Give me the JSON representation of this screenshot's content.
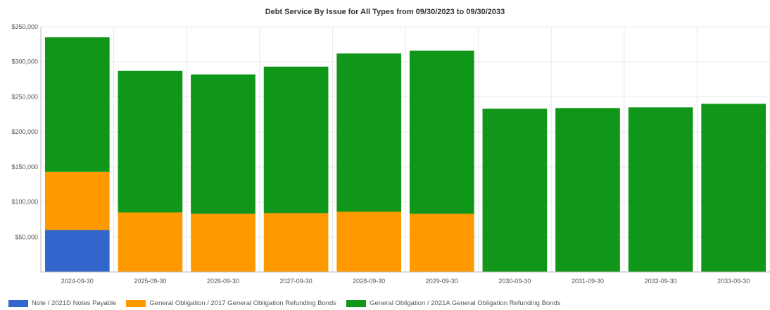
{
  "chart_data": {
    "type": "bar",
    "stacked": true,
    "title": "Debt Service By Issue for All Types from 09/30/2023 to 09/30/2033",
    "xlabel": "",
    "ylabel": "",
    "ylim": [
      0,
      350000
    ],
    "yticks": [
      "$50,000",
      "$100,000",
      "$150,000",
      "$200,000",
      "$250,000",
      "$300,000",
      "$350,000"
    ],
    "ytick_values": [
      50000,
      100000,
      150000,
      200000,
      250000,
      300000,
      350000
    ],
    "grid": true,
    "legend_position": "bottom-left",
    "categories": [
      "2024-09-30",
      "2025-09-30",
      "2026-09-30",
      "2027-09-30",
      "2028-09-30",
      "2029-09-30",
      "2030-09-30",
      "2031-09-30",
      "2032-09-30",
      "2033-09-30"
    ],
    "series": [
      {
        "name": "Note / 2021D Notes Payable",
        "color": "#3366cc",
        "values": [
          60000,
          0,
          0,
          0,
          0,
          0,
          0,
          0,
          0,
          0
        ]
      },
      {
        "name": "General Obligation / 2017 General Obligation Refunding Bonds",
        "color": "#ff9900",
        "values": [
          83000,
          85000,
          83000,
          84000,
          86000,
          83000,
          0,
          0,
          0,
          0
        ]
      },
      {
        "name": "General Obligation / 2021A General Obligation Refunding Bonds",
        "color": "#109618",
        "values": [
          192000,
          202000,
          199000,
          209000,
          226000,
          233000,
          233000,
          234000,
          235000,
          240000
        ]
      }
    ]
  }
}
